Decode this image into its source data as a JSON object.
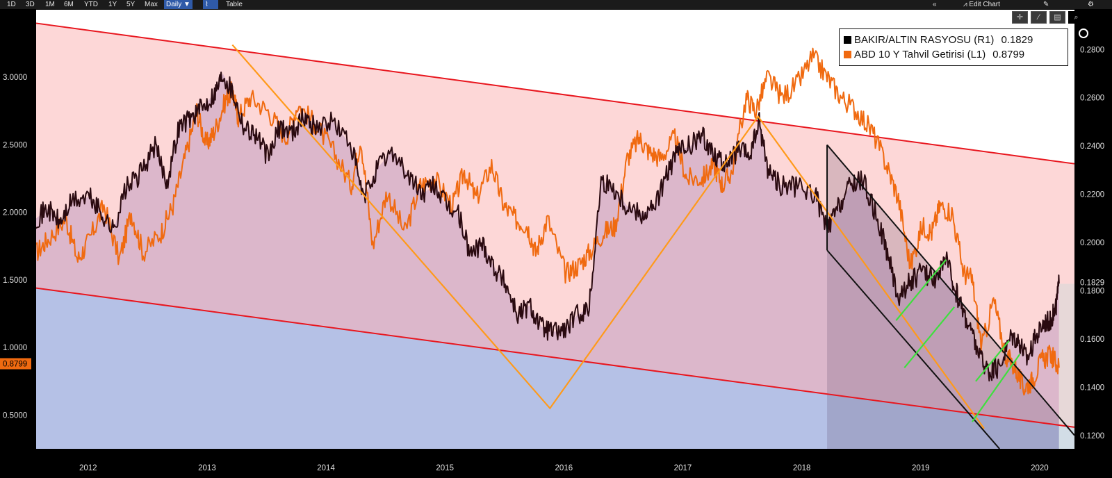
{
  "toolbar": {
    "ranges": [
      "1D",
      "3D",
      "1M",
      "6M",
      "YTD",
      "1Y",
      "5Y",
      "Max"
    ],
    "frequency": "Daily ▼",
    "table_label": "Table",
    "edit_chart_label": "Edit Chart",
    "collapse_icon": "double-chevron-left-icon",
    "settings_icon": "gear-icon"
  },
  "colors": {
    "background": "#ffffff",
    "upper_band": "#fdd7d7",
    "lower_band": "#c9e4fb",
    "red_channel": "#e8161e",
    "copper_gold": "#2a0a10",
    "yield_10y": "#f06a10",
    "zigzag": "#ff9a1a",
    "green_lines": "#3ee03e"
  },
  "chart_data": {
    "type": "line",
    "title": "",
    "x_labels": [
      "2012",
      "2013",
      "2014",
      "2015",
      "2016",
      "2017",
      "2018",
      "2019",
      "2020"
    ],
    "xlim": [
      2011.85,
      2020.58
    ],
    "left_axis": {
      "ticks": [
        "3.0000",
        "2.5000",
        "2.0000",
        "1.5000",
        "1.0000",
        "0.5000"
      ],
      "ylim": [
        0.25,
        3.5
      ],
      "current_label": "0.8799"
    },
    "right_axis": {
      "ticks": [
        "0.2800",
        "0.2600",
        "0.2400",
        "0.2200",
        "0.2000",
        "0.1800",
        "0.1600",
        "0.1400",
        "0.1200"
      ],
      "ylim": [
        0.1145,
        0.2965
      ],
      "current_label": "0.1829"
    },
    "legend": [
      {
        "name": "BAKIR/ALTIN RASYOSU (R1)",
        "value": "0.1829",
        "color": "#000000"
      },
      {
        "name": "ABD 10 Y Tahvil Getirisi (L1)",
        "value": "0.8799",
        "color": "#f06a10"
      }
    ],
    "series": [
      {
        "name": "ABD 10 Y Tahvil Getirisi",
        "axis": "left",
        "x": [
          2011.85,
          2011.95,
          2012.1,
          2012.2,
          2012.3,
          2012.42,
          2012.55,
          2012.65,
          2012.75,
          2012.9,
          2013.0,
          2013.1,
          2013.2,
          2013.28,
          2013.35,
          2013.45,
          2013.5,
          2013.55,
          2013.65,
          2013.8,
          2013.95,
          2014.05,
          2014.2,
          2014.35,
          2014.5,
          2014.58,
          2014.68,
          2014.8,
          2014.95,
          2015.08,
          2015.2,
          2015.35,
          2015.45,
          2015.55,
          2015.68,
          2015.78,
          2015.88,
          2015.98,
          2016.05,
          2016.15,
          2016.3,
          2016.4,
          2016.5,
          2016.62,
          2016.72,
          2016.82,
          2016.92,
          2017.0,
          2017.1,
          2017.22,
          2017.32,
          2017.45,
          2017.55,
          2017.62,
          2017.7,
          2017.82,
          2017.9,
          2018.0,
          2018.12,
          2018.25,
          2018.38,
          2018.5,
          2018.62,
          2018.75,
          2018.88,
          2019.0,
          2019.1,
          2019.2,
          2019.3,
          2019.38,
          2019.45,
          2019.55,
          2019.65,
          2019.72,
          2019.8,
          2019.9,
          2020.0,
          2020.08,
          2020.15,
          2020.22,
          2020.3,
          2020.38,
          2020.45
        ],
        "y": [
          1.7,
          1.8,
          1.95,
          1.65,
          1.8,
          2.05,
          1.65,
          2.0,
          1.7,
          1.85,
          2.05,
          2.4,
          2.75,
          2.5,
          2.6,
          2.85,
          2.9,
          2.7,
          2.85,
          2.75,
          2.55,
          2.8,
          2.65,
          2.45,
          2.2,
          2.55,
          1.75,
          2.15,
          1.85,
          2.2,
          2.25,
          2.05,
          2.3,
          2.1,
          2.35,
          2.05,
          1.95,
          1.9,
          1.7,
          1.95,
          1.55,
          1.6,
          1.7,
          1.85,
          1.9,
          2.4,
          2.55,
          2.45,
          2.4,
          2.55,
          2.25,
          2.25,
          2.35,
          2.2,
          2.3,
          2.85,
          2.75,
          3.0,
          2.85,
          2.95,
          3.15,
          3.0,
          2.85,
          2.75,
          2.6,
          2.35,
          2.1,
          1.6,
          1.9,
          1.85,
          2.05,
          2.0,
          1.55,
          1.5,
          1.0,
          1.35,
          0.95,
          0.85,
          0.7,
          0.75,
          0.9,
          0.95,
          0.85
        ]
      },
      {
        "name": "BAKIR/ALTIN RASYOSU",
        "axis": "right",
        "x": [
          2011.85,
          2011.95,
          2012.05,
          2012.15,
          2012.3,
          2012.4,
          2012.5,
          2012.6,
          2012.72,
          2012.85,
          2012.95,
          2013.05,
          2013.15,
          2013.25,
          2013.35,
          2013.42,
          2013.5,
          2013.6,
          2013.7,
          2013.8,
          2013.9,
          2014.0,
          2014.1,
          2014.2,
          2014.35,
          2014.5,
          2014.6,
          2014.72,
          2014.85,
          2015.0,
          2015.1,
          2015.2,
          2015.3,
          2015.4,
          2015.5,
          2015.6,
          2015.7,
          2015.8,
          2015.9,
          2016.0,
          2016.1,
          2016.2,
          2016.3,
          2016.4,
          2016.5,
          2016.6,
          2016.72,
          2016.82,
          2016.95,
          2017.05,
          2017.15,
          2017.25,
          2017.35,
          2017.45,
          2017.55,
          2017.65,
          2017.75,
          2017.85,
          2017.93,
          2018.0,
          2018.1,
          2018.25,
          2018.4,
          2018.5,
          2018.6,
          2018.7,
          2018.8,
          2018.92,
          2019.0,
          2019.1,
          2019.2,
          2019.3,
          2019.4,
          2019.5,
          2019.58,
          2019.65,
          2019.72,
          2019.8,
          2019.88,
          2019.95,
          2020.05,
          2020.12,
          2020.18,
          2020.25,
          2020.32,
          2020.38,
          2020.42,
          2020.45
        ],
        "y": [
          0.21,
          0.214,
          0.208,
          0.217,
          0.219,
          0.212,
          0.205,
          0.222,
          0.228,
          0.24,
          0.225,
          0.248,
          0.252,
          0.256,
          0.262,
          0.27,
          0.263,
          0.248,
          0.245,
          0.235,
          0.248,
          0.246,
          0.252,
          0.248,
          0.25,
          0.24,
          0.218,
          0.231,
          0.238,
          0.226,
          0.22,
          0.224,
          0.215,
          0.212,
          0.195,
          0.2,
          0.19,
          0.183,
          0.17,
          0.174,
          0.165,
          0.163,
          0.164,
          0.17,
          0.173,
          0.226,
          0.222,
          0.215,
          0.212,
          0.215,
          0.228,
          0.238,
          0.24,
          0.244,
          0.237,
          0.232,
          0.238,
          0.236,
          0.25,
          0.231,
          0.224,
          0.223,
          0.22,
          0.205,
          0.215,
          0.224,
          0.226,
          0.21,
          0.197,
          0.177,
          0.184,
          0.188,
          0.185,
          0.193,
          0.18,
          0.171,
          0.162,
          0.151,
          0.146,
          0.149,
          0.162,
          0.159,
          0.152,
          0.16,
          0.167,
          0.168,
          0.172,
          0.183
        ]
      }
    ],
    "trend_channel": {
      "axis": "left",
      "upper": [
        [
          2011.85,
          3.4
        ],
        [
          2020.58,
          2.36
        ]
      ],
      "lower": [
        [
          2011.85,
          1.44
        ],
        [
          2020.58,
          0.41
        ]
      ]
    },
    "zigzag": {
      "axis": "left",
      "points": [
        [
          2013.5,
          3.24
        ],
        [
          2016.17,
          0.55
        ],
        [
          2017.92,
          2.71
        ],
        [
          2019.82,
          0.4
        ]
      ]
    },
    "black_channel": {
      "axis": "left",
      "upper": [
        [
          2018.5,
          2.5
        ],
        [
          2020.58,
          0.35
        ]
      ],
      "lower": [
        [
          2018.5,
          1.72
        ],
        [
          2019.95,
          0.25
        ]
      ]
    },
    "green_lines": {
      "axis": "left",
      "lines": [
        [
          [
            2019.08,
            1.2
          ],
          [
            2019.5,
            1.65
          ]
        ],
        [
          [
            2019.15,
            0.85
          ],
          [
            2019.57,
            1.3
          ]
        ],
        [
          [
            2019.75,
            0.75
          ],
          [
            2020.03,
            1.05
          ]
        ],
        [
          [
            2019.72,
            0.45
          ],
          [
            2020.12,
            0.95
          ]
        ]
      ]
    }
  }
}
